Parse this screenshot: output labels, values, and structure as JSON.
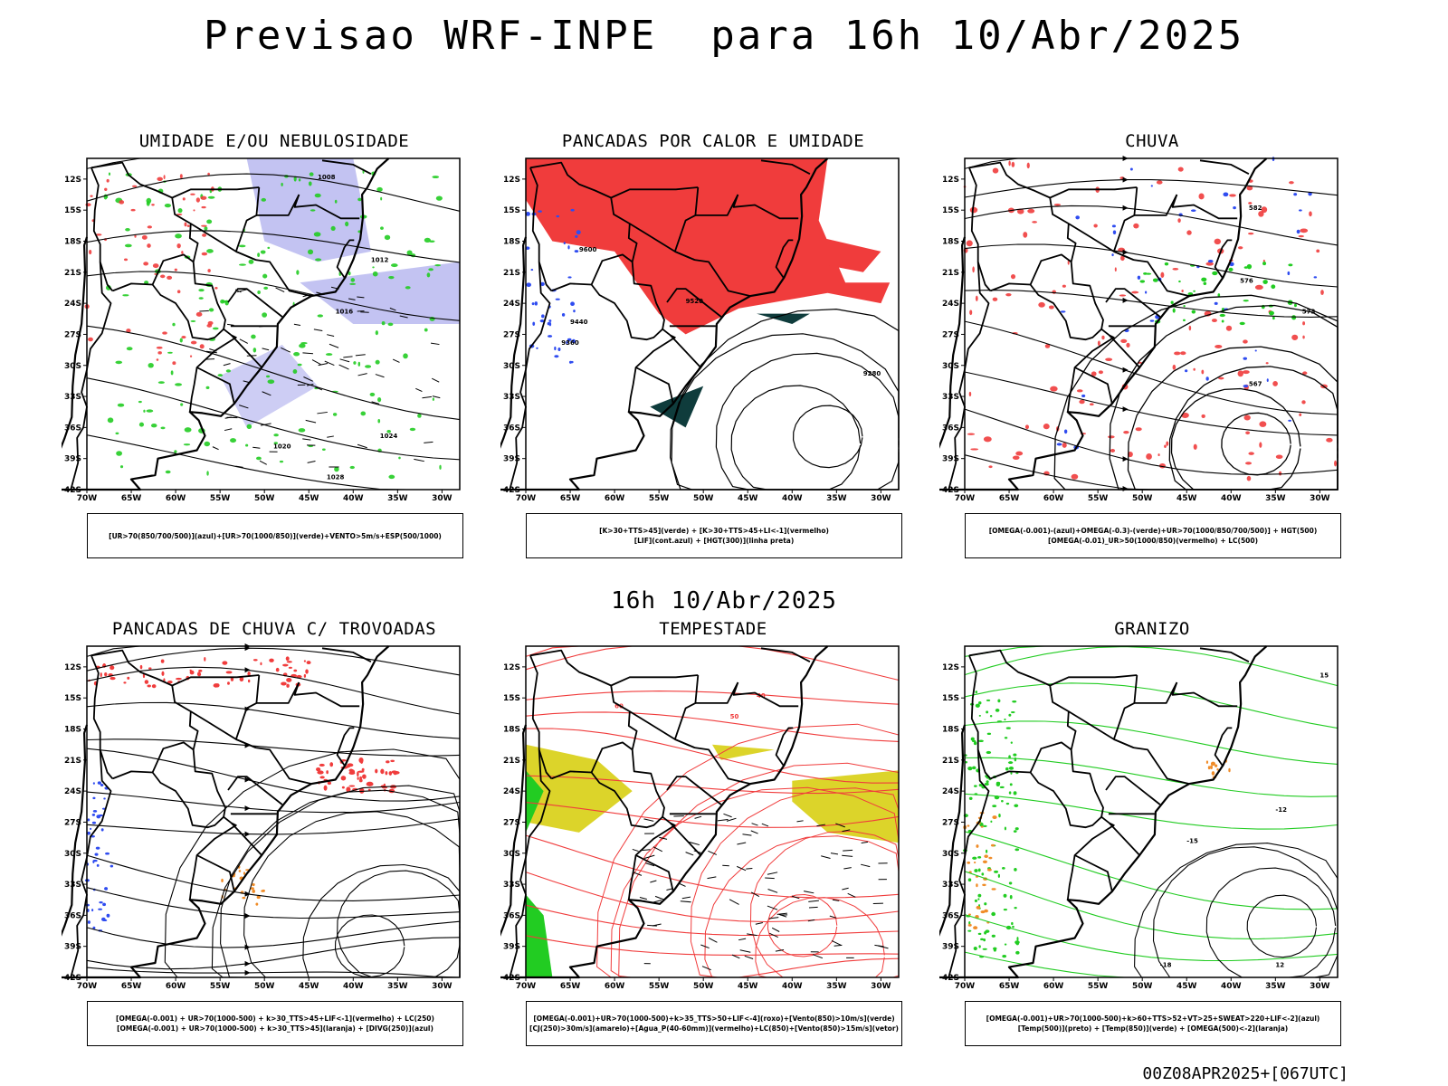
{
  "header": {
    "title": "Previsao WRF-INPE  para 16h 10/Abr/2025",
    "mid_time": "16h 10/Abr/2025",
    "footer_stamp": "00Z08APR2025+[067UTC]"
  },
  "axes": {
    "lat_labels": [
      "12S",
      "15S",
      "18S",
      "21S",
      "24S",
      "27S",
      "30S",
      "33S",
      "36S",
      "39S",
      "42S"
    ],
    "lon_labels": [
      "70W",
      "65W",
      "60W",
      "55W",
      "50W",
      "45W",
      "40W",
      "35W",
      "30W"
    ]
  },
  "panels": [
    {
      "title": "UMIDADE E/OU NEBULOSIDADE",
      "legend": [
        "[UR>70(850/700/500)](azul)+[UR>70(1000/850)](verde)+VENTO>5m/s+ESP(500/1000)"
      ],
      "contour_labels": [
        "1008",
        "1012",
        "1016",
        "1020",
        "1024",
        "1028"
      ]
    },
    {
      "title": "PANCADAS POR CALOR E UMIDADE",
      "legend": [
        "[K>30+TTS>45](verde) + [K>30+TTS>45+LI<-1](vermelho)",
        "[LIF](cont.azul) + [HGT(300)](linha preta)"
      ],
      "contour_labels": [
        "9600",
        "9520",
        "9440",
        "9360",
        "9280"
      ]
    },
    {
      "title": "CHUVA",
      "legend": [
        "[OMEGA(-0.001)-(azul)+OMEGA(-0.3)-(verde)+UR>70(1000/850/700/500)] + HGT(500)",
        "[OMEGA(-0.01)_UR>50(1000/850)(vermelho) + LC(500)"
      ],
      "contour_labels": [
        "582",
        "576",
        "573",
        "567"
      ]
    },
    {
      "title": "PANCADAS DE CHUVA C/ TROVOADAS",
      "legend": [
        "[OMEGA(-0.001) + UR>70(1000-500) + k>30_TTS>45+LIF<-1](vermelho) + LC(250)",
        "[OMEGA(-0.001) + UR>70(1000-500) + k>30_TTS>45](laranja) + [DIVG(250)](azul)"
      ],
      "contour_labels": []
    },
    {
      "title": "TEMPESTADE",
      "legend": [
        "[OMEGA(-0.001)+UR>70(1000-500)+k>35_TTS>50+LIF<-4](roxo)+[Vento(850)>10m/s](verde)",
        "[CJ(250)>30m/s](amarelo)+[Agua_P(40-60mm)](vermelho)+LC(850)+[Vento(850)>15m/s](vetor)"
      ],
      "contour_labels": [
        "40",
        "50",
        "60"
      ]
    },
    {
      "title": "GRANIZO",
      "legend": [
        "[OMEGA(-0.001)+UR>70(1000-500)+k>60+TTS>52+VT>25+SWEAT>220+LIF<-2](azul)",
        "[Temp(500)](preto) + [Temp(850)](verde) + [OMEGA(500)<-2](laranja)"
      ],
      "contour_labels": [
        "-12",
        "-15",
        "-18",
        "15",
        "12"
      ]
    }
  ],
  "colors": {
    "red": "#f03c3c",
    "blue": "#2f4cf0",
    "lightblue": "#b8b8f0",
    "green": "#22cc22",
    "darkteal": "#0f3c3c",
    "yellow": "#dcd42a",
    "orange": "#f08c28",
    "black": "#000000"
  }
}
